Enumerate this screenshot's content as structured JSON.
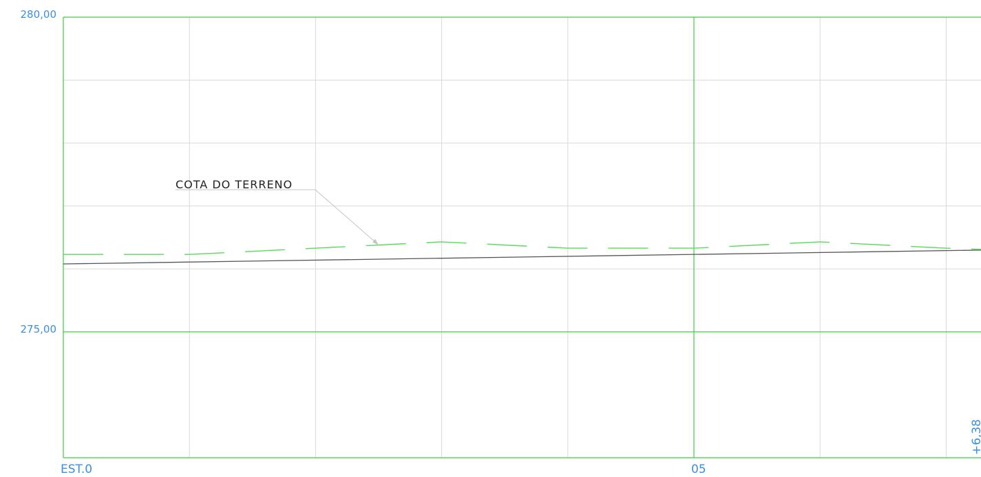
{
  "chart_data": {
    "type": "line",
    "title": "",
    "xlabel": "",
    "ylabel": "",
    "xlim": [
      0,
      7.3
    ],
    "ylim": [
      273,
      280
    ],
    "y_ticks": [
      {
        "value": 280,
        "label": "280,00"
      },
      {
        "value": 275,
        "label": "275,00"
      }
    ],
    "x_ticks": [
      {
        "value": 0,
        "label": "EST.0"
      },
      {
        "value": 5,
        "label": "05"
      }
    ],
    "extra_x_label": {
      "value": 7.3,
      "label": "+6,38"
    },
    "grid": true,
    "minor_grid_x": [
      1,
      2,
      3,
      4,
      6,
      7
    ],
    "minor_grid_y": [
      273,
      276,
      277,
      278,
      279
    ],
    "major_grid_x": [
      0,
      5
    ],
    "major_grid_y": [
      275,
      280
    ],
    "series": [
      {
        "style": "solid",
        "color": "#555555",
        "x": [
          0,
          7.3
        ],
        "y": [
          276.08,
          276.3
        ]
      },
      {
        "style": "dashed",
        "color": "#55dd55",
        "x": [
          0,
          1,
          2,
          3,
          4,
          5,
          6,
          7,
          7.3
        ],
        "y": [
          276.23,
          276.23,
          276.33,
          276.43,
          276.33,
          276.33,
          276.43,
          276.33,
          276.31
        ]
      }
    ],
    "annotations": [
      {
        "text": "COTA DO TERRENO",
        "points_to": {
          "x": 2.5,
          "y": 276.38
        }
      }
    ]
  },
  "colors": {
    "major_grid": "#38d038",
    "minor_grid": "#d9d9d9",
    "axis_text": "#3a8fe0",
    "terrain_line": "#555555",
    "dashed_line": "#55dd55",
    "annotation_text": "#222222",
    "leader": "#c4c4c4"
  }
}
